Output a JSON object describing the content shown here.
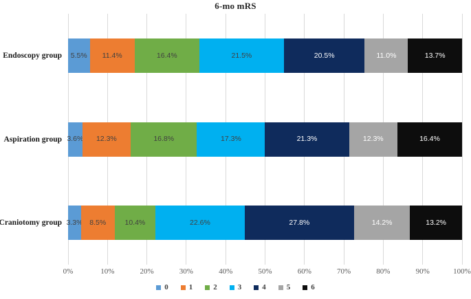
{
  "chart_data": {
    "type": "bar",
    "subtype": "horizontal-stacked",
    "title": "6-mo mRS",
    "categories": [
      "Endoscopy group",
      "Aspiration group",
      "Craniotomy group"
    ],
    "series": [
      {
        "name": "0",
        "color": "#5B9BD5",
        "label_color": "#404040",
        "values": [
          5.5,
          3.6,
          3.3
        ]
      },
      {
        "name": "1",
        "color": "#ED7D31",
        "label_color": "#404040",
        "values": [
          11.4,
          12.3,
          8.5
        ]
      },
      {
        "name": "2",
        "color": "#70AD47",
        "label_color": "#404040",
        "values": [
          16.4,
          16.8,
          10.4
        ]
      },
      {
        "name": "3",
        "color": "#00B0F0",
        "label_color": "#404040",
        "values": [
          21.5,
          17.3,
          22.6
        ]
      },
      {
        "name": "4",
        "color": "#0F2B5C",
        "label_color": "#FFFFFF",
        "values": [
          20.5,
          21.3,
          27.8
        ]
      },
      {
        "name": "5",
        "color": "#A5A5A5",
        "label_color": "#FFFFFF",
        "values": [
          11.0,
          12.3,
          14.2
        ]
      },
      {
        "name": "6",
        "color": "#0D0D0D",
        "label_color": "#FFFFFF",
        "values": [
          13.7,
          16.4,
          13.2
        ]
      }
    ],
    "x_ticks": [
      "0%",
      "10%",
      "20%",
      "30%",
      "40%",
      "50%",
      "60%",
      "70%",
      "80%",
      "90%",
      "100%"
    ],
    "xlim": [
      0,
      100
    ],
    "grid": "vertical",
    "gridline_color": "#D9D9D9",
    "legend_position": "bottom",
    "value_suffix": "%"
  }
}
